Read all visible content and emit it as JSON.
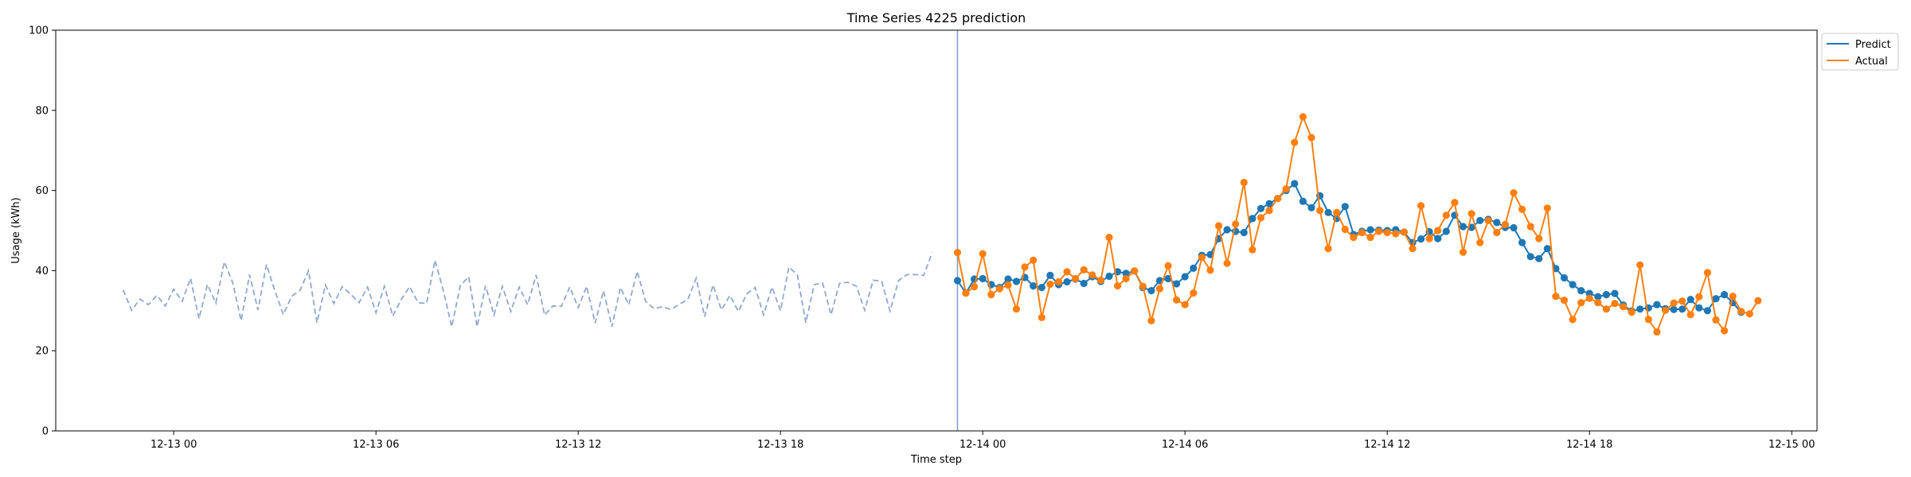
{
  "chart_data": {
    "type": "line",
    "title": "Time Series 4225 prediction",
    "xlabel": "Time step",
    "ylabel": "Usage (kWh)",
    "xlim": [
      "2025-12-12T20:30",
      "2025-12-15T00:45"
    ],
    "ylim": [
      0,
      100
    ],
    "yticks": [
      0,
      20,
      40,
      60,
      80,
      100
    ],
    "xticks": [
      {
        "t": "2025-12-13T00:00",
        "label": "12-13 00"
      },
      {
        "t": "2025-12-13T06:00",
        "label": "12-13 06"
      },
      {
        "t": "2025-12-13T12:00",
        "label": "12-13 12"
      },
      {
        "t": "2025-12-13T18:00",
        "label": "12-13 18"
      },
      {
        "t": "2025-12-14T00:00",
        "label": "12-14 00"
      },
      {
        "t": "2025-12-14T06:00",
        "label": "12-14 06"
      },
      {
        "t": "2025-12-14T12:00",
        "label": "12-14 12"
      },
      {
        "t": "2025-12-14T18:00",
        "label": "12-14 18"
      },
      {
        "t": "2025-12-15T00:00",
        "label": "12-15 00"
      }
    ],
    "grid": false,
    "legend_position": "outside-top-right",
    "forecast_start": "2025-12-13T23:15",
    "history": {
      "start": "2025-12-12T22:30",
      "step_minutes": 15,
      "color": "#8ea8cf",
      "values": [
        35.2,
        30.1,
        32.9,
        31.5,
        33.8,
        31.2,
        35.4,
        32.3,
        38.1,
        28.0,
        36.5,
        31.9,
        42.2,
        37.0,
        27.5,
        39.0,
        30.2,
        41.5,
        35.0,
        29.0,
        33.6,
        35.1,
        40.0,
        27.0,
        36.4,
        31.8,
        36.0,
        34.1,
        32.0,
        35.9,
        29.5,
        36.1,
        28.7,
        32.8,
        36.0,
        32.0,
        31.8,
        42.6,
        34.9,
        26.0,
        36.2,
        38.5,
        26.0,
        36.2,
        28.9,
        36.1,
        29.8,
        35.9,
        31.5,
        38.9,
        28.9,
        31.2,
        31.1,
        35.9,
        30.8,
        36.1,
        26.9,
        35.0,
        26.0,
        35.8,
        31.5,
        39.8,
        32.3,
        30.5,
        31.0,
        30.3,
        31.6,
        32.8,
        38.1,
        28.5,
        36.4,
        30.2,
        33.8,
        29.8,
        34.2,
        35.8,
        29.0,
        35.9,
        30.0,
        40.9,
        38.9,
        27.0,
        36.5,
        36.9,
        29.0,
        36.8,
        37.1,
        36.1,
        30.1,
        37.6,
        37.4,
        29.9,
        37.5,
        39.0,
        39.0,
        38.8,
        44.5
      ]
    },
    "series": [
      {
        "name": "Predict",
        "color": "#1f77b4",
        "start": "2025-12-13T23:15",
        "step_minutes": 15,
        "values": [
          37.5,
          34.4,
          37.9,
          38.0,
          36.5,
          35.8,
          37.9,
          37.3,
          38.3,
          36.2,
          35.8,
          38.8,
          36.5,
          37.2,
          37.9,
          36.8,
          38.5,
          37.3,
          38.6,
          39.7,
          39.3,
          39.9,
          35.8,
          35.0,
          37.5,
          38.0,
          36.7,
          38.5,
          40.6,
          43.8,
          44.0,
          48.0,
          50.2,
          49.8,
          49.5,
          53.0,
          55.5,
          56.7,
          58.0,
          60.0,
          61.7,
          57.3,
          55.7,
          58.7,
          54.5,
          53.0,
          56.0,
          49.0,
          49.8,
          50.2,
          50.1,
          50.0,
          50.2,
          49.6,
          47.0,
          47.9,
          49.7,
          48.0,
          49.8,
          53.8,
          51.0,
          50.8,
          52.5,
          52.8,
          52.0,
          50.8,
          50.7,
          47.0,
          43.5,
          43.0,
          45.5,
          40.5,
          38.2,
          36.5,
          35.0,
          34.3,
          33.5,
          34.0,
          34.3,
          31.4,
          29.9,
          30.4,
          30.7,
          31.5,
          30.5,
          30.3,
          30.4,
          32.8,
          30.7,
          30.0,
          33.0,
          34.0,
          32.0,
          29.6
        ]
      },
      {
        "name": "Actual",
        "color": "#ff7f0e",
        "start": "2025-12-13T23:15",
        "step_minutes": 15,
        "values": [
          44.5,
          34.4,
          36.0,
          44.2,
          34.0,
          35.5,
          36.4,
          30.4,
          40.9,
          42.6,
          28.3,
          36.6,
          37.2,
          39.7,
          38.0,
          40.2,
          38.9,
          37.6,
          48.3,
          36.2,
          38.0,
          39.9,
          36.1,
          27.5,
          35.5,
          41.2,
          32.7,
          31.5,
          34.4,
          43.3,
          40.1,
          51.2,
          41.8,
          51.6,
          62.0,
          45.2,
          53.2,
          55.0,
          58.0,
          60.4,
          72.0,
          78.4,
          73.2,
          55.0,
          45.5,
          54.5,
          50.3,
          48.3,
          49.5,
          48.3,
          49.8,
          49.5,
          49.2,
          49.6,
          45.5,
          56.2,
          48.0,
          50.0,
          53.8,
          57.0,
          44.6,
          54.2,
          47.0,
          52.5,
          49.5,
          51.5,
          59.4,
          55.3,
          51.0,
          48.0,
          55.6,
          33.6,
          32.6,
          27.8,
          32.0,
          33.1,
          32.0,
          30.4,
          31.8,
          31.0,
          29.6,
          41.4,
          27.8,
          24.7,
          30.1,
          31.9,
          32.4,
          29.0,
          33.5,
          39.5,
          27.7,
          25.0,
          33.6,
          29.8,
          29.2,
          32.5
        ]
      }
    ]
  }
}
